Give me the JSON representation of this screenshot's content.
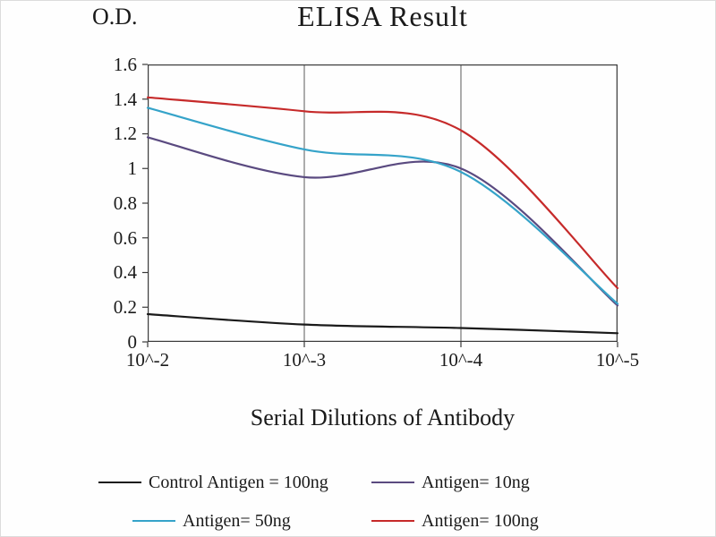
{
  "chart_data": {
    "type": "line",
    "title": "ELISA Result",
    "ylabel": "O.D.",
    "xlabel": "Serial Dilutions of Antibody",
    "categories": [
      "10^-2",
      "10^-3",
      "10^-4",
      "10^-5"
    ],
    "y_ticks": [
      "1.6",
      "1.4",
      "1.2",
      "1",
      "0.8",
      "0.6",
      "0.4",
      "0.2",
      "0"
    ],
    "ylim": [
      0,
      1.6
    ],
    "grid": "vertical-interior-only",
    "legend_position": "bottom",
    "series": [
      {
        "name": "Control Antigen = 100ng",
        "color": "#1a1a1a",
        "values": [
          0.16,
          0.1,
          0.08,
          0.05
        ]
      },
      {
        "name": "Antigen= 10ng",
        "color": "#5a4a80",
        "values": [
          1.18,
          0.95,
          1.0,
          0.21
        ]
      },
      {
        "name": "Antigen= 50ng",
        "color": "#35a3c9",
        "values": [
          1.35,
          1.11,
          0.98,
          0.22
        ]
      },
      {
        "name": "Antigen= 100ng",
        "color": "#c62a2a",
        "values": [
          1.41,
          1.33,
          1.22,
          0.31
        ]
      }
    ]
  }
}
